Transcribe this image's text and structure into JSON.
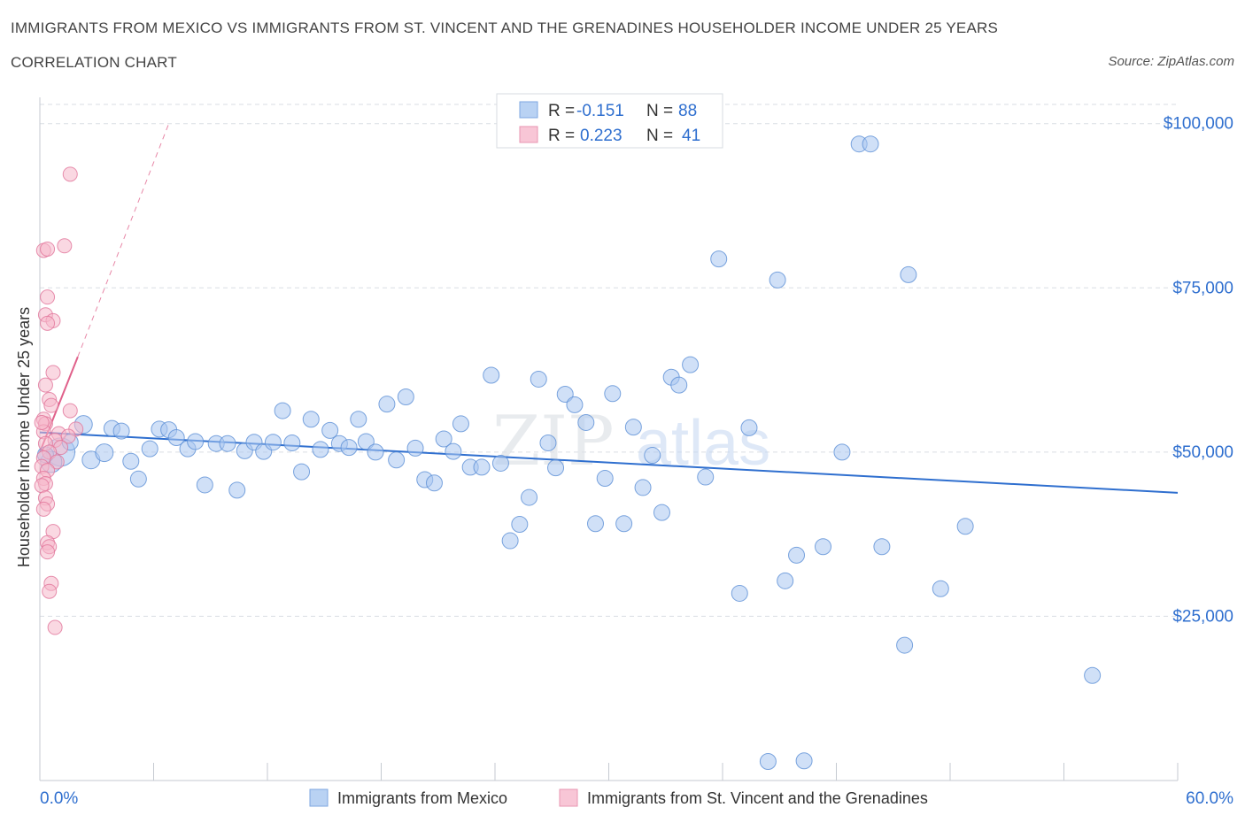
{
  "header": {
    "title": "IMMIGRANTS FROM MEXICO VS IMMIGRANTS FROM ST. VINCENT AND THE GRENADINES HOUSEHOLDER INCOME UNDER 25 YEARS",
    "subtitle": "CORRELATION CHART",
    "source": "Source: ZipAtlas.com"
  },
  "legend_stats": [
    {
      "r_label": "R =",
      "r_value": "-0.151",
      "n_label": "N =",
      "n_value": "88"
    },
    {
      "r_label": "R =",
      "r_value": "0.223",
      "n_label": "N =",
      "n_value": "41"
    }
  ],
  "colors": {
    "blue_fill": "#a9c7f0",
    "blue_stroke": "#5b8fd6",
    "blue_line": "#2f6fcf",
    "pink_fill": "#f5b8cb",
    "pink_stroke": "#e1749a",
    "pink_line": "#e0608a",
    "value_text": "#2f6fcf",
    "grid": "#d9dde3"
  },
  "watermark": {
    "zip": "ZIP",
    "atlas": "atlas"
  },
  "chart_data": {
    "type": "scatter",
    "title": "IMMIGRANTS FROM MEXICO VS IMMIGRANTS FROM ST. VINCENT AND THE GRENADINES HOUSEHOLDER INCOME UNDER 25 YEARS",
    "xlabel": "",
    "ylabel": "Householder Income Under 25 years",
    "xlim": [
      0,
      60
    ],
    "ylim": [
      0,
      104000
    ],
    "x_tick_labels": [
      "0.0%",
      "60.0%"
    ],
    "y_ticks": [
      25000,
      50000,
      75000,
      100000
    ],
    "y_tick_labels": [
      "$25,000",
      "$50,000",
      "$75,000",
      "$100,000"
    ],
    "grid": true,
    "legend_position": "bottom",
    "series": [
      {
        "name": "Immigrants from Mexico",
        "color": "#a9c7f0",
        "trend": {
          "x": [
            0,
            60
          ],
          "y": [
            53000,
            43800
          ]
        },
        "points": [
          {
            "x": 1.1,
            "y": 50000,
            "size": 16
          },
          {
            "x": 0.6,
            "y": 48500,
            "size": 12
          },
          {
            "x": 2.3,
            "y": 54200,
            "size": 10
          },
          {
            "x": 2.7,
            "y": 48800,
            "size": 10
          },
          {
            "x": 3.4,
            "y": 49900,
            "size": 10
          },
          {
            "x": 3.8,
            "y": 53600,
            "size": 9
          },
          {
            "x": 4.3,
            "y": 53200,
            "size": 9
          },
          {
            "x": 4.8,
            "y": 48600,
            "size": 9
          },
          {
            "x": 5.2,
            "y": 45900,
            "size": 9
          },
          {
            "x": 5.8,
            "y": 50500,
            "size": 9
          },
          {
            "x": 6.3,
            "y": 53500,
            "size": 9
          },
          {
            "x": 6.8,
            "y": 53400,
            "size": 9
          },
          {
            "x": 7.2,
            "y": 52200,
            "size": 9
          },
          {
            "x": 7.8,
            "y": 50500,
            "size": 9
          },
          {
            "x": 8.2,
            "y": 51600,
            "size": 9
          },
          {
            "x": 8.7,
            "y": 45000,
            "size": 9
          },
          {
            "x": 9.3,
            "y": 51300,
            "size": 9
          },
          {
            "x": 9.9,
            "y": 51300,
            "size": 9
          },
          {
            "x": 10.4,
            "y": 44200,
            "size": 9
          },
          {
            "x": 10.8,
            "y": 50200,
            "size": 9
          },
          {
            "x": 11.3,
            "y": 51500,
            "size": 9
          },
          {
            "x": 11.8,
            "y": 50100,
            "size": 9
          },
          {
            "x": 12.3,
            "y": 51500,
            "size": 9
          },
          {
            "x": 12.8,
            "y": 56300,
            "size": 9
          },
          {
            "x": 13.3,
            "y": 51400,
            "size": 9
          },
          {
            "x": 13.8,
            "y": 47000,
            "size": 9
          },
          {
            "x": 14.3,
            "y": 55000,
            "size": 9
          },
          {
            "x": 14.8,
            "y": 50400,
            "size": 9
          },
          {
            "x": 15.3,
            "y": 53300,
            "size": 9
          },
          {
            "x": 15.8,
            "y": 51300,
            "size": 9
          },
          {
            "x": 16.3,
            "y": 50700,
            "size": 9
          },
          {
            "x": 16.8,
            "y": 55000,
            "size": 9
          },
          {
            "x": 17.2,
            "y": 51600,
            "size": 9
          },
          {
            "x": 17.7,
            "y": 50000,
            "size": 9
          },
          {
            "x": 18.3,
            "y": 57300,
            "size": 9
          },
          {
            "x": 18.8,
            "y": 48800,
            "size": 9
          },
          {
            "x": 19.3,
            "y": 58400,
            "size": 9
          },
          {
            "x": 19.8,
            "y": 50600,
            "size": 9
          },
          {
            "x": 20.3,
            "y": 45800,
            "size": 9
          },
          {
            "x": 20.8,
            "y": 45300,
            "size": 9
          },
          {
            "x": 21.3,
            "y": 52000,
            "size": 9
          },
          {
            "x": 21.8,
            "y": 50100,
            "size": 9
          },
          {
            "x": 22.2,
            "y": 54300,
            "size": 9
          },
          {
            "x": 22.7,
            "y": 47700,
            "size": 9
          },
          {
            "x": 23.3,
            "y": 47700,
            "size": 9
          },
          {
            "x": 23.8,
            "y": 61700,
            "size": 9
          },
          {
            "x": 24.3,
            "y": 48300,
            "size": 9
          },
          {
            "x": 24.8,
            "y": 36500,
            "size": 9
          },
          {
            "x": 25.3,
            "y": 39000,
            "size": 9
          },
          {
            "x": 25.8,
            "y": 43100,
            "size": 9
          },
          {
            "x": 26.3,
            "y": 61100,
            "size": 9
          },
          {
            "x": 26.8,
            "y": 51400,
            "size": 9
          },
          {
            "x": 27.2,
            "y": 47600,
            "size": 9
          },
          {
            "x": 27.7,
            "y": 58800,
            "size": 9
          },
          {
            "x": 28.2,
            "y": 57200,
            "size": 9
          },
          {
            "x": 28.8,
            "y": 54500,
            "size": 9
          },
          {
            "x": 29.3,
            "y": 39100,
            "size": 9
          },
          {
            "x": 29.8,
            "y": 46000,
            "size": 9
          },
          {
            "x": 30.2,
            "y": 58900,
            "size": 9
          },
          {
            "x": 30.8,
            "y": 39100,
            "size": 9
          },
          {
            "x": 31.3,
            "y": 53800,
            "size": 9
          },
          {
            "x": 31.8,
            "y": 44600,
            "size": 9
          },
          {
            "x": 32.3,
            "y": 49500,
            "size": 9
          },
          {
            "x": 32.8,
            "y": 40800,
            "size": 9
          },
          {
            "x": 33.3,
            "y": 61400,
            "size": 9
          },
          {
            "x": 33.7,
            "y": 60200,
            "size": 9
          },
          {
            "x": 34.3,
            "y": 63300,
            "size": 9
          },
          {
            "x": 35.1,
            "y": 46200,
            "size": 9
          },
          {
            "x": 35.8,
            "y": 79400,
            "size": 9
          },
          {
            "x": 36.9,
            "y": 28500,
            "size": 9
          },
          {
            "x": 37.4,
            "y": 53700,
            "size": 9
          },
          {
            "x": 38.4,
            "y": 2900,
            "size": 9
          },
          {
            "x": 38.9,
            "y": 76200,
            "size": 9
          },
          {
            "x": 39.3,
            "y": 30400,
            "size": 9
          },
          {
            "x": 39.9,
            "y": 34300,
            "size": 9
          },
          {
            "x": 40.3,
            "y": 3000,
            "size": 9
          },
          {
            "x": 41.3,
            "y": 35600,
            "size": 9
          },
          {
            "x": 42.3,
            "y": 50000,
            "size": 9
          },
          {
            "x": 43.2,
            "y": 96900,
            "size": 9
          },
          {
            "x": 43.8,
            "y": 96900,
            "size": 9
          },
          {
            "x": 44.4,
            "y": 35600,
            "size": 9
          },
          {
            "x": 45.6,
            "y": 20600,
            "size": 9
          },
          {
            "x": 45.8,
            "y": 77000,
            "size": 9
          },
          {
            "x": 47.5,
            "y": 29200,
            "size": 9
          },
          {
            "x": 48.8,
            "y": 38700,
            "size": 9
          },
          {
            "x": 55.5,
            "y": 16000,
            "size": 9
          },
          {
            "x": 1.6,
            "y": 51500,
            "size": 9
          },
          {
            "x": 0.3,
            "y": 49600,
            "size": 9
          }
        ]
      },
      {
        "name": "Immigrants from St. Vincent and the Grenadines",
        "color": "#f5b8cb",
        "trend": {
          "x": [
            0,
            2.0
          ],
          "y": [
            50000,
            64500
          ],
          "extended": {
            "x": [
              2.0,
              6.8
            ],
            "y": [
              64500,
              100000
            ]
          }
        },
        "points": [
          {
            "x": 1.6,
            "y": 92300,
            "size": 8
          },
          {
            "x": 0.2,
            "y": 80700,
            "size": 8
          },
          {
            "x": 0.4,
            "y": 80900,
            "size": 8
          },
          {
            "x": 1.3,
            "y": 81400,
            "size": 8
          },
          {
            "x": 0.4,
            "y": 73600,
            "size": 8
          },
          {
            "x": 0.3,
            "y": 70900,
            "size": 8
          },
          {
            "x": 0.7,
            "y": 70000,
            "size": 8
          },
          {
            "x": 0.4,
            "y": 69600,
            "size": 8
          },
          {
            "x": 0.7,
            "y": 62100,
            "size": 8
          },
          {
            "x": 0.3,
            "y": 60200,
            "size": 8
          },
          {
            "x": 0.5,
            "y": 58000,
            "size": 8
          },
          {
            "x": 0.6,
            "y": 57100,
            "size": 8
          },
          {
            "x": 1.6,
            "y": 56300,
            "size": 8
          },
          {
            "x": 0.2,
            "y": 55000,
            "size": 8
          },
          {
            "x": 0.3,
            "y": 54300,
            "size": 8
          },
          {
            "x": 1.9,
            "y": 53500,
            "size": 8
          },
          {
            "x": 0.2,
            "y": 53100,
            "size": 8
          },
          {
            "x": 1.0,
            "y": 52800,
            "size": 8
          },
          {
            "x": 1.5,
            "y": 52400,
            "size": 8
          },
          {
            "x": 0.8,
            "y": 51800,
            "size": 8
          },
          {
            "x": 0.3,
            "y": 51300,
            "size": 8
          },
          {
            "x": 1.1,
            "y": 50700,
            "size": 8
          },
          {
            "x": 0.5,
            "y": 50000,
            "size": 8
          },
          {
            "x": 0.2,
            "y": 49100,
            "size": 8
          },
          {
            "x": 0.9,
            "y": 48500,
            "size": 8
          },
          {
            "x": 0.1,
            "y": 47800,
            "size": 8
          },
          {
            "x": 0.4,
            "y": 47200,
            "size": 8
          },
          {
            "x": 0.2,
            "y": 46000,
            "size": 8
          },
          {
            "x": 0.3,
            "y": 45200,
            "size": 8
          },
          {
            "x": 0.1,
            "y": 44900,
            "size": 8
          },
          {
            "x": 0.3,
            "y": 43000,
            "size": 8
          },
          {
            "x": 0.4,
            "y": 42100,
            "size": 8
          },
          {
            "x": 0.2,
            "y": 41300,
            "size": 8
          },
          {
            "x": 0.7,
            "y": 37900,
            "size": 8
          },
          {
            "x": 0.4,
            "y": 36200,
            "size": 8
          },
          {
            "x": 0.5,
            "y": 35600,
            "size": 8
          },
          {
            "x": 0.4,
            "y": 34800,
            "size": 8
          },
          {
            "x": 0.6,
            "y": 30000,
            "size": 8
          },
          {
            "x": 0.5,
            "y": 28800,
            "size": 8
          },
          {
            "x": 0.8,
            "y": 23300,
            "size": 8
          },
          {
            "x": 0.1,
            "y": 54500,
            "size": 8
          }
        ]
      }
    ]
  }
}
